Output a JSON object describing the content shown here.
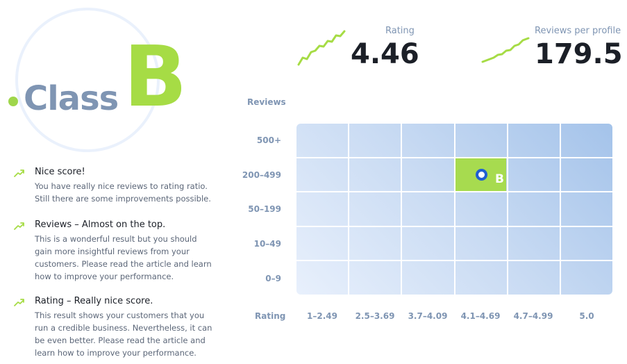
{
  "class_badge": {
    "label": "Class",
    "grade": "B"
  },
  "stats": {
    "rating": {
      "label": "Rating",
      "value": "4.46"
    },
    "reviews_per_profile": {
      "label": "Reviews per profile",
      "value": "179.5"
    }
  },
  "feedback": [
    {
      "icon": "trend-up-icon",
      "title": "Nice score!",
      "text": "You have really nice reviews to rating ratio. Still there are some improvements possible."
    },
    {
      "icon": "trend-up-icon",
      "title": "Reviews – Almost on the top.",
      "text": "This is a wonderful result but you should gain more insightful reviews from your customers. Please read the article and learn how to improve your performance."
    },
    {
      "icon": "trend-up-icon",
      "title": "Rating – Really nice score.",
      "text": "This result shows your customers that you run a credible business. Nevertheless, it can be even better. Please read the article and learn how to improve your performance."
    }
  ],
  "matrix": {
    "y_title": "Reviews",
    "x_title": "Rating",
    "rows": [
      "500+",
      "200–499",
      "50–199",
      "10–49",
      "0–9"
    ],
    "cols": [
      "1–2.49",
      "2.5–3.69",
      "3.7–4.09",
      "4.1–4.69",
      "4.7–4.99",
      "5.0"
    ],
    "active": {
      "row": "200–499",
      "col": "4.1–4.69",
      "grade": "B"
    }
  },
  "colors": {
    "accent_green": "#a6dc45",
    "muted_blue": "#7f95b3",
    "marker_blue": "#1f5fd1"
  }
}
